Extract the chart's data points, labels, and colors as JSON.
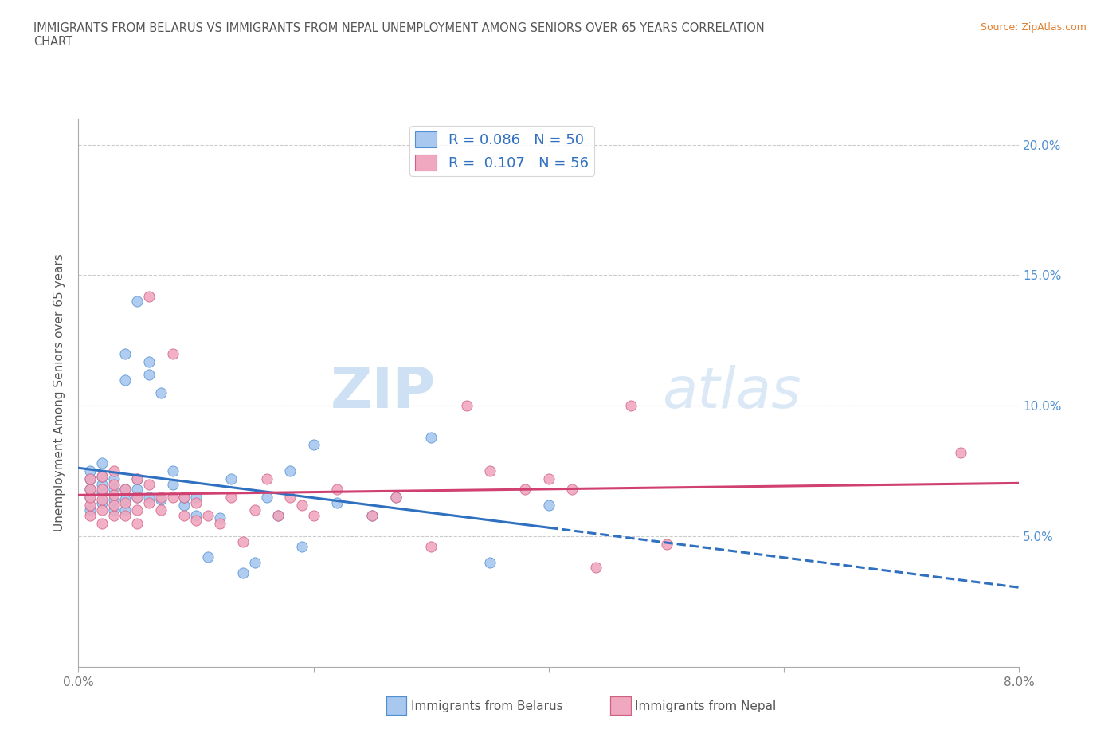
{
  "title": "IMMIGRANTS FROM BELARUS VS IMMIGRANTS FROM NEPAL UNEMPLOYMENT AMONG SENIORS OVER 65 YEARS CORRELATION\nCHART",
  "source": "Source: ZipAtlas.com",
  "ylabel_label": "Unemployment Among Seniors over 65 years",
  "xlim": [
    0.0,
    0.08
  ],
  "ylim": [
    0.0,
    0.21
  ],
  "x_ticks": [
    0.0,
    0.02,
    0.04,
    0.06,
    0.08
  ],
  "y_ticks": [
    0.0,
    0.05,
    0.1,
    0.15,
    0.2
  ],
  "y_tick_labels_right": [
    "",
    "5.0%",
    "10.0%",
    "15.0%",
    "20.0%"
  ],
  "x_tick_labels": [
    "0.0%",
    "",
    "",
    "",
    "8.0%"
  ],
  "watermark_zip": "ZIP",
  "watermark_atlas": "atlas",
  "R_belarus": "0.086",
  "N_belarus": "50",
  "R_nepal": "0.107",
  "N_nepal": "56",
  "color_belarus": "#a8c8f0",
  "color_nepal": "#f0a8c0",
  "edge_belarus": "#5090d0",
  "edge_nepal": "#d06080",
  "line_color_belarus": "#3070c0",
  "line_color_nepal": "#d04070",
  "background_color": "#ffffff",
  "belarus_x": [
    0.001,
    0.001,
    0.001,
    0.001,
    0.001,
    0.002,
    0.002,
    0.002,
    0.002,
    0.002,
    0.003,
    0.003,
    0.003,
    0.003,
    0.004,
    0.004,
    0.004,
    0.004,
    0.004,
    0.005,
    0.005,
    0.005,
    0.005,
    0.006,
    0.006,
    0.006,
    0.007,
    0.007,
    0.008,
    0.008,
    0.009,
    0.009,
    0.01,
    0.01,
    0.011,
    0.012,
    0.013,
    0.014,
    0.015,
    0.016,
    0.017,
    0.018,
    0.019,
    0.02,
    0.022,
    0.025,
    0.027,
    0.03,
    0.035,
    0.04
  ],
  "belarus_y": [
    0.065,
    0.068,
    0.072,
    0.075,
    0.06,
    0.063,
    0.067,
    0.07,
    0.073,
    0.078,
    0.06,
    0.064,
    0.068,
    0.072,
    0.06,
    0.064,
    0.068,
    0.11,
    0.12,
    0.065,
    0.068,
    0.072,
    0.14,
    0.112,
    0.117,
    0.065,
    0.064,
    0.105,
    0.07,
    0.075,
    0.062,
    0.065,
    0.058,
    0.065,
    0.042,
    0.057,
    0.072,
    0.036,
    0.04,
    0.065,
    0.058,
    0.075,
    0.046,
    0.085,
    0.063,
    0.058,
    0.065,
    0.088,
    0.04,
    0.062
  ],
  "nepal_x": [
    0.001,
    0.001,
    0.001,
    0.001,
    0.001,
    0.002,
    0.002,
    0.002,
    0.002,
    0.002,
    0.003,
    0.003,
    0.003,
    0.003,
    0.003,
    0.004,
    0.004,
    0.004,
    0.005,
    0.005,
    0.005,
    0.005,
    0.006,
    0.006,
    0.006,
    0.007,
    0.007,
    0.008,
    0.008,
    0.009,
    0.009,
    0.01,
    0.01,
    0.011,
    0.012,
    0.013,
    0.014,
    0.015,
    0.016,
    0.017,
    0.018,
    0.019,
    0.02,
    0.022,
    0.025,
    0.027,
    0.03,
    0.033,
    0.035,
    0.038,
    0.04,
    0.042,
    0.044,
    0.047,
    0.05,
    0.075
  ],
  "nepal_y": [
    0.058,
    0.062,
    0.065,
    0.068,
    0.072,
    0.055,
    0.06,
    0.064,
    0.068,
    0.073,
    0.058,
    0.062,
    0.066,
    0.07,
    0.075,
    0.058,
    0.063,
    0.068,
    0.055,
    0.06,
    0.065,
    0.072,
    0.063,
    0.07,
    0.142,
    0.06,
    0.065,
    0.065,
    0.12,
    0.058,
    0.065,
    0.056,
    0.063,
    0.058,
    0.055,
    0.065,
    0.048,
    0.06,
    0.072,
    0.058,
    0.065,
    0.062,
    0.058,
    0.068,
    0.058,
    0.065,
    0.046,
    0.1,
    0.075,
    0.068,
    0.072,
    0.068,
    0.038,
    0.1,
    0.047,
    0.082
  ]
}
